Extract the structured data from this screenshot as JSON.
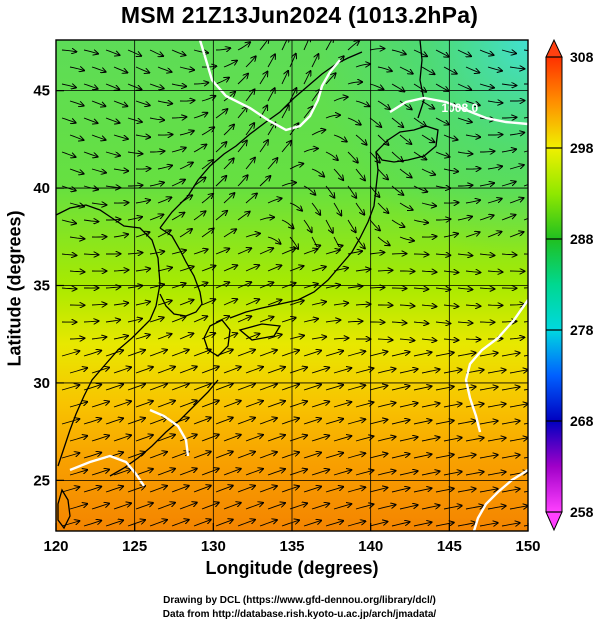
{
  "title": "MSM 21Z13Jun2024 (1013.2hPa)",
  "xlabel": "Longitude (degrees)",
  "ylabel": "Latitude  (degrees)",
  "credits": [
    "Drawing by DCL (https://www.gfd-dennou.org/library/dcl/)",
    "Data from http://database.rish.kyoto-u.ac.jp/arch/jmadata/"
  ],
  "map": {
    "lon_range": [
      120,
      150
    ],
    "lat_range": [
      22.4,
      47.6
    ],
    "lon_ticks": [
      "120",
      "125",
      "130",
      "135",
      "140",
      "145",
      "150"
    ],
    "lat_ticks": [
      "25",
      "30",
      "35",
      "40",
      "45"
    ],
    "grid": true,
    "field": "temperature (K)",
    "vectors": "wind streamlines",
    "contour_label": "1008.0",
    "contour_label_position": {
      "lon": 144.5,
      "lat": 43.9
    },
    "contour_color": "#ffffff",
    "coast_color": "#000000"
  },
  "colorbar": {
    "min": 258,
    "max": 308,
    "tick_labels": [
      "308",
      "298",
      "288",
      "278",
      "268",
      "258"
    ],
    "tick_values": [
      308,
      298,
      288,
      278,
      268,
      258
    ],
    "stops": [
      {
        "value": 258,
        "color": "#ff40ff"
      },
      {
        "value": 263,
        "color": "#a000c8"
      },
      {
        "value": 268,
        "color": "#0000c0"
      },
      {
        "value": 273,
        "color": "#0060ff"
      },
      {
        "value": 278,
        "color": "#00d8e0"
      },
      {
        "value": 283,
        "color": "#00d890"
      },
      {
        "value": 288,
        "color": "#20c020"
      },
      {
        "value": 293,
        "color": "#90e800"
      },
      {
        "value": 298,
        "color": "#f0f000"
      },
      {
        "value": 303,
        "color": "#ff9000"
      },
      {
        "value": 308,
        "color": "#ff3000"
      }
    ]
  }
}
